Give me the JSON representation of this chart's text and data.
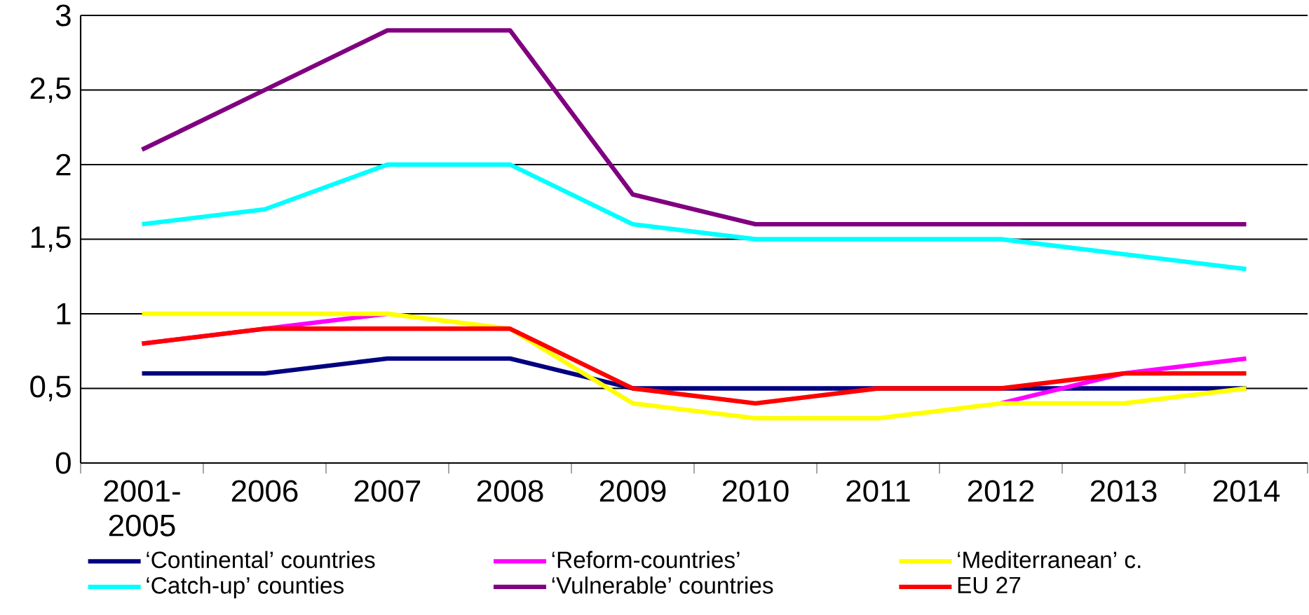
{
  "chart_data": {
    "type": "line",
    "categories": [
      "2001-2005",
      "2006",
      "2007",
      "2008",
      "2009",
      "2010",
      "2011",
      "2012",
      "2013",
      "2014"
    ],
    "ylim": [
      0,
      3
    ],
    "yticks": [
      0,
      {
        "value": 0.5,
        "label": "0,5"
      },
      1,
      {
        "value": 1.5,
        "label": "1,5"
      },
      2,
      {
        "value": 2.5,
        "label": "2,5"
      },
      3
    ],
    "grid": "y",
    "legend": "bottom",
    "marker": "none",
    "line_style": "solid",
    "series": [
      {
        "name": "‘Continental’ countries",
        "color": "#000080",
        "values": [
          0.6,
          0.6,
          0.7,
          0.7,
          0.5,
          0.5,
          0.5,
          0.5,
          0.5,
          0.5
        ]
      },
      {
        "name": "‘Reform-countries’",
        "color": "#ff00ff",
        "values": [
          0.8,
          0.9,
          1.0,
          null,
          null,
          null,
          null,
          0.4,
          0.6,
          0.7
        ]
      },
      {
        "name": "‘Mediterranean’ c.",
        "color": "#ffff00",
        "values": [
          1.0,
          1.0,
          1.0,
          0.9,
          0.4,
          0.3,
          0.3,
          0.4,
          0.4,
          0.5
        ]
      },
      {
        "name": "‘Catch-up’ counties",
        "color": "#00ffff",
        "values": [
          1.6,
          1.7,
          2.0,
          2.0,
          1.6,
          1.5,
          1.5,
          1.5,
          1.4,
          1.3
        ]
      },
      {
        "name": "‘Vulnerable’ countries",
        "color": "#800080",
        "values": [
          2.1,
          2.5,
          2.9,
          2.9,
          1.8,
          1.6,
          1.6,
          1.6,
          1.6,
          1.6
        ]
      },
      {
        "name": "EU 27",
        "color": "#ff0000",
        "values": [
          0.8,
          0.9,
          0.9,
          0.9,
          0.5,
          0.4,
          0.5,
          0.5,
          0.6,
          0.6
        ]
      }
    ]
  }
}
